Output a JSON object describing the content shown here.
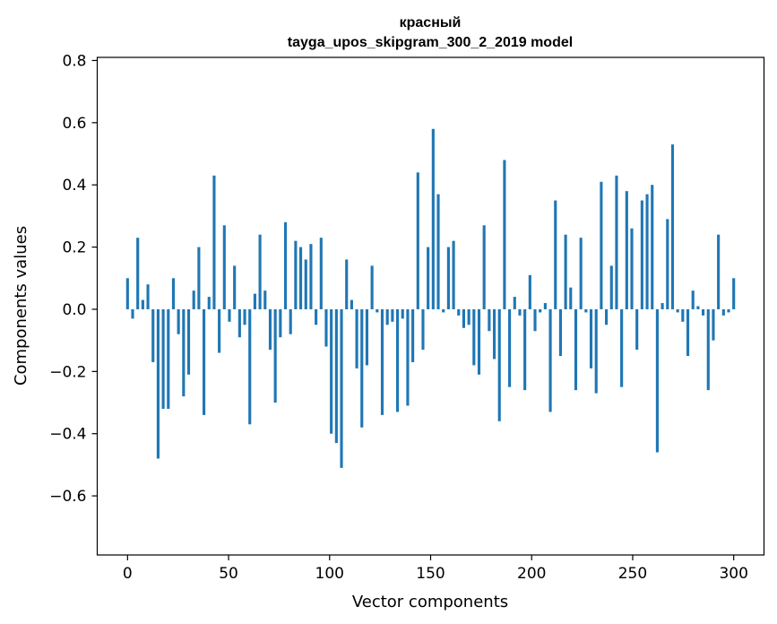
{
  "chart_data": {
    "type": "bar",
    "title": "красный",
    "subtitle": "tayga_upos_skipgram_300_2_2019 model",
    "xlabel": "Vector components",
    "ylabel": "Components values",
    "xlim": [
      -15,
      315
    ],
    "ylim": [
      -0.79,
      0.81
    ],
    "xticks": [
      0,
      50,
      100,
      150,
      200,
      250,
      300
    ],
    "yticks": [
      -0.6,
      -0.4,
      -0.2,
      0.0,
      0.2,
      0.4,
      0.6,
      0.8
    ],
    "grid": false,
    "bar_color": "#1f77b4",
    "values": [
      0.1,
      -0.03,
      0.23,
      0.03,
      0.08,
      -0.17,
      -0.48,
      -0.32,
      -0.32,
      0.1,
      -0.08,
      -0.28,
      -0.21,
      0.06,
      0.2,
      -0.34,
      0.04,
      0.43,
      -0.14,
      0.27,
      -0.04,
      0.14,
      -0.09,
      -0.05,
      -0.37,
      0.05,
      0.24,
      0.06,
      -0.13,
      -0.3,
      -0.09,
      0.28,
      -0.08,
      0.22,
      0.2,
      0.16,
      0.21,
      -0.05,
      0.23,
      -0.12,
      -0.4,
      -0.43,
      -0.51,
      0.16,
      0.03,
      -0.19,
      -0.38,
      -0.18,
      0.14,
      -0.01,
      -0.34,
      -0.05,
      -0.04,
      -0.33,
      -0.03,
      -0.31,
      -0.17,
      0.44,
      -0.13,
      0.2,
      0.58,
      0.37,
      -0.01,
      0.2,
      0.22,
      -0.02,
      -0.06,
      -0.05,
      -0.18,
      -0.21,
      0.27,
      -0.07,
      -0.16,
      -0.36,
      0.48,
      -0.25,
      0.04,
      -0.02,
      -0.26,
      0.11,
      -0.07,
      -0.01,
      0.02,
      -0.33,
      0.35,
      -0.15,
      0.24,
      0.07,
      -0.26,
      0.23,
      -0.01,
      -0.19,
      -0.27,
      0.41,
      -0.05,
      0.14,
      0.43,
      -0.25,
      0.38,
      0.26,
      -0.13,
      0.35,
      0.37,
      0.4,
      -0.46,
      0.02,
      0.29,
      0.53,
      -0.01,
      -0.04,
      -0.15,
      0.06,
      0.01,
      -0.02,
      -0.26,
      -0.1,
      0.24,
      -0.02,
      -0.01,
      0.1
    ]
  }
}
